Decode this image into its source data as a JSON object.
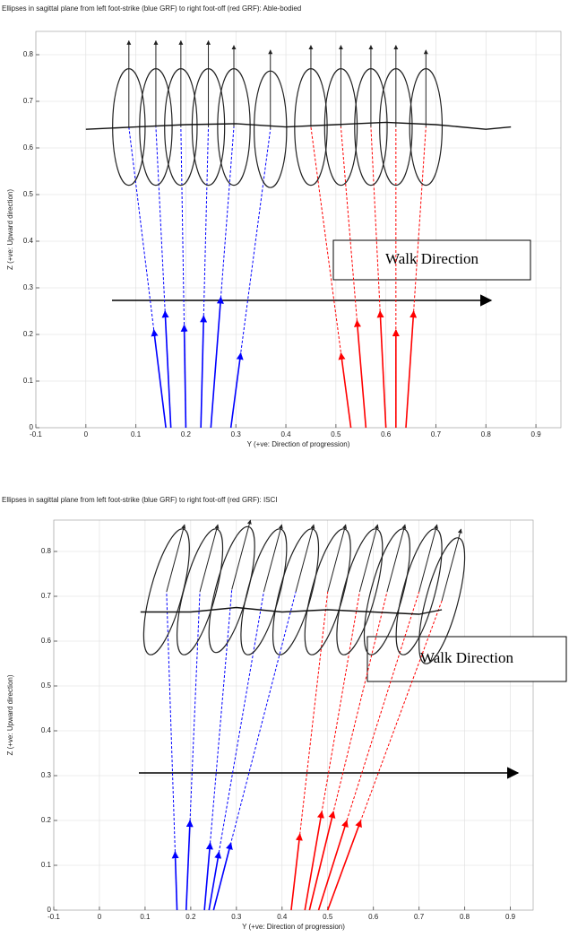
{
  "chart_data": [
    {
      "type": "ellipse",
      "title": "Ellipses in sagittal plane from left foot-strike (blue GRF) to right foot-off (red GRF): Able-bodied",
      "xlabel": "Y (+ve: Direction of progression)",
      "ylabel": "Z (+ve: Upward direction)",
      "annotation": "Walk Direction",
      "xlim": [
        -0.1,
        0.95
      ],
      "ylim": [
        0,
        0.85
      ],
      "xticks": [
        -0.1,
        0,
        0.1,
        0.2,
        0.3,
        0.4,
        0.5,
        0.6,
        0.7,
        0.8,
        0.9
      ],
      "yticks": [
        0,
        0.1,
        0.2,
        0.3,
        0.4,
        0.5,
        0.6,
        0.7,
        0.8
      ],
      "grid": true,
      "ellipses": [
        {
          "y": 0.086,
          "z": 0.645,
          "width": 0.065,
          "height": 0.25,
          "tilt": 0,
          "top": 0.83,
          "foot": 0.16,
          "force": 0.21,
          "color": "#0000ff"
        },
        {
          "y": 0.14,
          "z": 0.645,
          "width": 0.065,
          "height": 0.25,
          "tilt": 0,
          "top": 0.83,
          "foot": 0.17,
          "force": 0.25,
          "color": "#0000ff"
        },
        {
          "y": 0.19,
          "z": 0.645,
          "width": 0.065,
          "height": 0.25,
          "tilt": 0,
          "top": 0.83,
          "foot": 0.2,
          "force": 0.22,
          "color": "#0000ff"
        },
        {
          "y": 0.245,
          "z": 0.645,
          "width": 0.065,
          "height": 0.25,
          "tilt": 0,
          "top": 0.83,
          "foot": 0.23,
          "force": 0.24,
          "color": "#0000ff"
        },
        {
          "y": 0.296,
          "z": 0.645,
          "width": 0.065,
          "height": 0.25,
          "tilt": 0,
          "top": 0.82,
          "foot": 0.25,
          "force": 0.28,
          "color": "#0000ff"
        },
        {
          "y": 0.369,
          "z": 0.64,
          "width": 0.065,
          "height": 0.25,
          "tilt": 0,
          "top": 0.81,
          "foot": 0.29,
          "force": 0.16,
          "color": "#0000ff"
        },
        {
          "y": 0.45,
          "z": 0.645,
          "width": 0.065,
          "height": 0.25,
          "tilt": 0,
          "top": 0.82,
          "foot": 0.53,
          "force": 0.16,
          "color": "#ff0000"
        },
        {
          "y": 0.51,
          "z": 0.645,
          "width": 0.065,
          "height": 0.25,
          "tilt": 0,
          "top": 0.82,
          "foot": 0.56,
          "force": 0.23,
          "color": "#ff0000"
        },
        {
          "y": 0.57,
          "z": 0.645,
          "width": 0.065,
          "height": 0.25,
          "tilt": 0,
          "top": 0.82,
          "foot": 0.6,
          "force": 0.25,
          "color": "#ff0000"
        },
        {
          "y": 0.62,
          "z": 0.645,
          "width": 0.065,
          "height": 0.25,
          "tilt": 0,
          "top": 0.82,
          "foot": 0.62,
          "force": 0.21,
          "color": "#ff0000"
        },
        {
          "y": 0.68,
          "z": 0.645,
          "width": 0.065,
          "height": 0.25,
          "tilt": 0,
          "top": 0.81,
          "foot": 0.64,
          "force": 0.25,
          "color": "#ff0000"
        }
      ],
      "com": {
        "x": [
          0,
          0.1,
          0.2,
          0.3,
          0.4,
          0.5,
          0.6,
          0.7,
          0.8,
          0.85
        ],
        "z": [
          0.64,
          0.645,
          0.65,
          0.652,
          0.645,
          0.65,
          0.655,
          0.65,
          0.64,
          0.645
        ]
      }
    },
    {
      "type": "ellipse",
      "title": "Ellipses in sagittal plane from left foot-strike (blue GRF) to right foot-off (red GRF): ISCI",
      "xlabel": "Y (+ve: Direction of progression)",
      "ylabel": "Z (+ve: Upward direction)",
      "annotation": "Walk Direction",
      "xlim": [
        -0.1,
        0.95
      ],
      "ylim": [
        0,
        0.87
      ],
      "xticks": [
        -0.1,
        0,
        0.1,
        0.2,
        0.3,
        0.4,
        0.5,
        0.6,
        0.7,
        0.8,
        0.9
      ],
      "yticks": [
        0,
        0.1,
        0.2,
        0.3,
        0.4,
        0.5,
        0.6,
        0.7,
        0.8
      ],
      "grid": true,
      "ellipses": [
        {
          "y": 0.147,
          "z": 0.71,
          "width": 0.07,
          "height": 0.29,
          "tilt": 15,
          "top": 0.86,
          "foot": 0.17,
          "force": 0.13,
          "color": "#0000ff"
        },
        {
          "y": 0.22,
          "z": 0.71,
          "width": 0.07,
          "height": 0.29,
          "tilt": 15,
          "top": 0.86,
          "foot": 0.19,
          "force": 0.2,
          "color": "#0000ff"
        },
        {
          "y": 0.29,
          "z": 0.715,
          "width": 0.07,
          "height": 0.29,
          "tilt": 15,
          "top": 0.87,
          "foot": 0.23,
          "force": 0.15,
          "color": "#0000ff"
        },
        {
          "y": 0.36,
          "z": 0.71,
          "width": 0.07,
          "height": 0.29,
          "tilt": 15,
          "top": 0.86,
          "foot": 0.24,
          "force": 0.13,
          "color": "#0000ff"
        },
        {
          "y": 0.43,
          "z": 0.71,
          "width": 0.07,
          "height": 0.29,
          "tilt": 15,
          "top": 0.86,
          "foot": 0.25,
          "force": 0.15,
          "color": "#0000ff"
        },
        {
          "y": 0.5,
          "z": 0.71,
          "width": 0.07,
          "height": 0.29,
          "tilt": 15,
          "top": 0.86,
          "foot": 0.42,
          "force": 0.17,
          "color": "#ff0000"
        },
        {
          "y": 0.57,
          "z": 0.71,
          "width": 0.07,
          "height": 0.29,
          "tilt": 15,
          "top": 0.86,
          "foot": 0.45,
          "force": 0.22,
          "color": "#ff0000"
        },
        {
          "y": 0.63,
          "z": 0.71,
          "width": 0.07,
          "height": 0.29,
          "tilt": 15,
          "top": 0.86,
          "foot": 0.46,
          "force": 0.22,
          "color": "#ff0000"
        },
        {
          "y": 0.7,
          "z": 0.71,
          "width": 0.07,
          "height": 0.29,
          "tilt": 15,
          "top": 0.86,
          "foot": 0.48,
          "force": 0.2,
          "color": "#ff0000"
        },
        {
          "y": 0.75,
          "z": 0.69,
          "width": 0.07,
          "height": 0.29,
          "tilt": 15,
          "top": 0.85,
          "foot": 0.5,
          "force": 0.2,
          "color": "#ff0000"
        }
      ],
      "com": {
        "x": [
          0.09,
          0.2,
          0.3,
          0.4,
          0.5,
          0.6,
          0.7,
          0.75
        ],
        "z": [
          0.665,
          0.665,
          0.675,
          0.665,
          0.67,
          0.665,
          0.66,
          0.67
        ]
      }
    }
  ]
}
